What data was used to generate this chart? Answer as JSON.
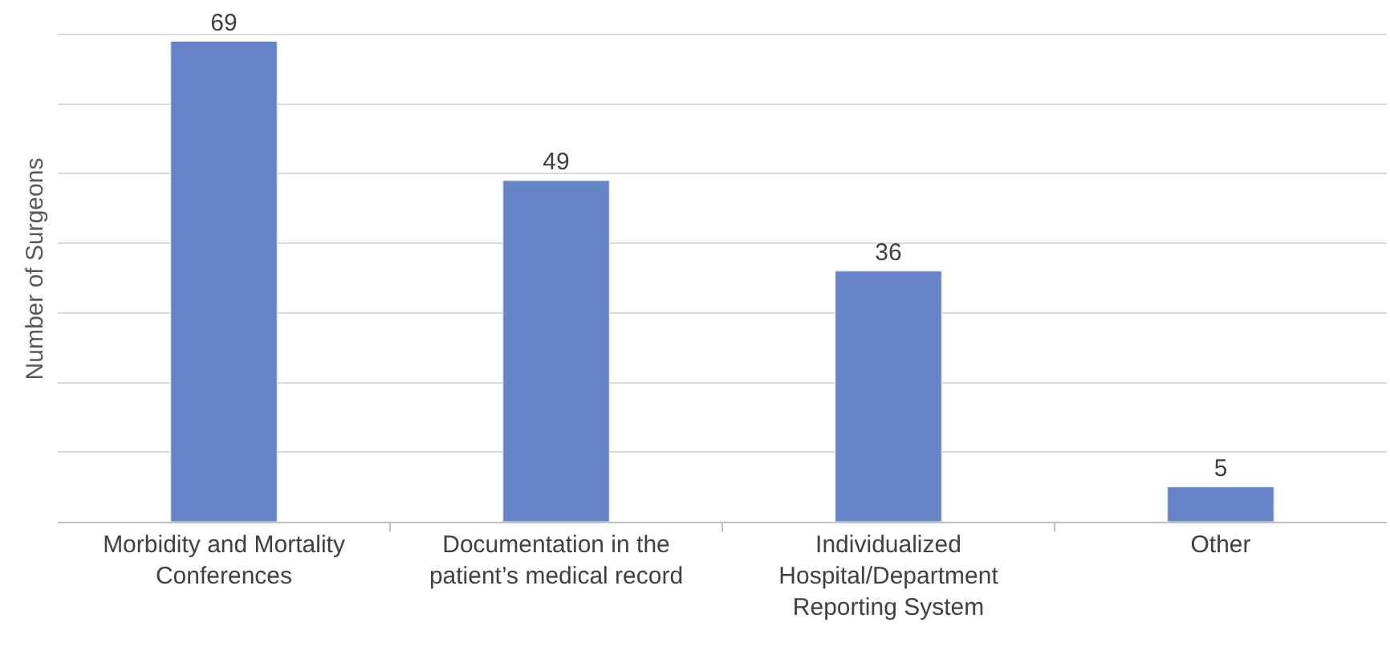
{
  "chart_data": {
    "type": "bar",
    "ylabel": "Number of Surgeons",
    "categories": [
      "Morbidity and Mortality Conferences",
      "Documentation in the patient’s medical record",
      "Individualized Hospital/Department Reporting System",
      "Other"
    ],
    "values": [
      69,
      49,
      36,
      5
    ],
    "color": "#6684c8",
    "data_labels": true,
    "grid": "y",
    "tick_labels": "x",
    "legend": false
  }
}
